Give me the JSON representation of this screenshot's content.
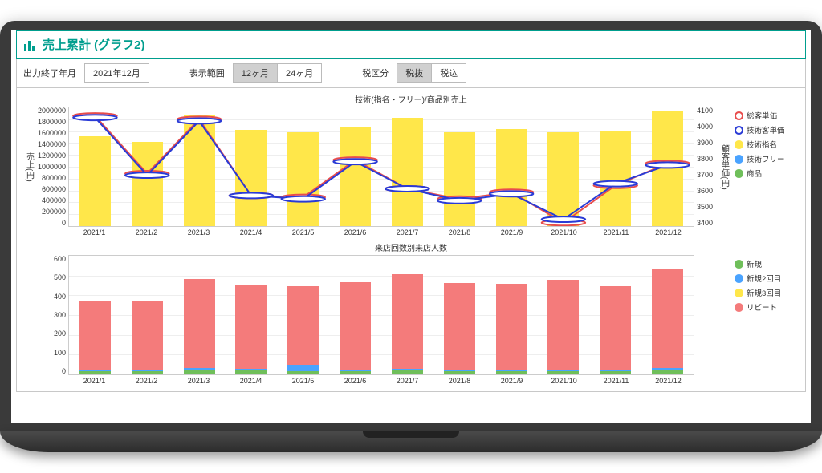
{
  "page_title": "売上累計 (グラフ2)",
  "controls": {
    "end_month_label": "出力終了年月",
    "end_month_value": "2021年12月",
    "period_label": "表示範囲",
    "period_options": [
      "12ヶ月",
      "24ヶ月"
    ],
    "period_selected": 0,
    "tax_label": "税区分",
    "tax_options": [
      "税抜",
      "税込"
    ],
    "tax_selected": 0
  },
  "months": [
    "2021/1",
    "2021/2",
    "2021/3",
    "2021/4",
    "2021/5",
    "2021/6",
    "2021/7",
    "2021/8",
    "2021/9",
    "2021/10",
    "2021/11",
    "2021/12"
  ],
  "chart1": {
    "title": "技術(指名・フリー)/商品別売上",
    "type": "bar+line-dual-axis",
    "y_left_label": "売上(円)",
    "y_right_label": "顧客単価(円)",
    "y_left_min": 0,
    "y_left_max": 2000000,
    "y_left_step": 200000,
    "y_right_min": 3400,
    "y_right_max": 4100,
    "y_right_step": 100,
    "bars": {
      "tech_shimei": {
        "color": "#ffe74a",
        "values": [
          1500000,
          1400000,
          1860000,
          1600000,
          1560000,
          1640000,
          1800000,
          1560000,
          1620000,
          1560000,
          1580000,
          1920000
        ]
      },
      "tech_free": {
        "color": "#4aa3ff",
        "values": [
          0,
          0,
          0,
          0,
          0,
          0,
          0,
          0,
          0,
          0,
          0,
          0
        ]
      },
      "product": {
        "color": "#6fbf5a",
        "values": [
          0,
          0,
          0,
          0,
          0,
          0,
          0,
          0,
          0,
          0,
          0,
          0
        ]
      }
    },
    "lines": {
      "soukyaku": {
        "color": "#e84c4c",
        "values": [
          4050,
          3710,
          4030,
          3580,
          3570,
          3790,
          3620,
          3560,
          3600,
          3420,
          3640,
          3770
        ]
      },
      "gijutsu": {
        "color": "#2a3bd6",
        "values": [
          4040,
          3700,
          4020,
          3580,
          3560,
          3780,
          3620,
          3550,
          3590,
          3440,
          3650,
          3760
        ]
      }
    },
    "line_width": 2,
    "marker_radius": 3.5,
    "legend": [
      {
        "kind": "ring",
        "color": "#e84c4c",
        "label": "総客単価"
      },
      {
        "kind": "ring",
        "color": "#2a3bd6",
        "label": "技術客単価"
      },
      {
        "kind": "dot",
        "color": "#ffe74a",
        "label": "技術指名"
      },
      {
        "kind": "dot",
        "color": "#4aa3ff",
        "label": "技術フリー"
      },
      {
        "kind": "dot",
        "color": "#6fbf5a",
        "label": "商品"
      }
    ],
    "background_color": "#ffffff",
    "grid_color": "#eeeeee"
  },
  "chart2": {
    "title": "来店回数別来店人数",
    "type": "stacked-bar",
    "y_min": 0,
    "y_max": 600,
    "y_step": 100,
    "series_order": [
      "new3",
      "new",
      "new2",
      "repeat"
    ],
    "series": {
      "new": {
        "color": "#6fbf5a",
        "values": [
          10,
          10,
          20,
          15,
          12,
          12,
          14,
          10,
          10,
          10,
          10,
          15
        ]
      },
      "new2": {
        "color": "#4aa3ff",
        "values": [
          5,
          5,
          8,
          10,
          30,
          8,
          10,
          6,
          6,
          6,
          6,
          12
        ]
      },
      "new3": {
        "color": "#ffe74a",
        "values": [
          5,
          5,
          5,
          5,
          5,
          5,
          5,
          5,
          5,
          5,
          5,
          5
        ]
      },
      "repeat": {
        "color": "#f47b7b",
        "values": [
          345,
          345,
          445,
          415,
          395,
          435,
          470,
          435,
          430,
          450,
          420,
          495
        ]
      }
    },
    "legend": [
      {
        "kind": "dot",
        "color": "#6fbf5a",
        "label": "新規"
      },
      {
        "kind": "dot",
        "color": "#4aa3ff",
        "label": "新規2回目"
      },
      {
        "kind": "dot",
        "color": "#ffe74a",
        "label": "新規3回目"
      },
      {
        "kind": "dot",
        "color": "#f47b7b",
        "label": "リピート"
      }
    ],
    "background_color": "#ffffff",
    "grid_color": "#eeeeee"
  },
  "plot_dims": {
    "chart1_height": 150,
    "chart2_height": 150,
    "bar_width_pct": 60
  }
}
